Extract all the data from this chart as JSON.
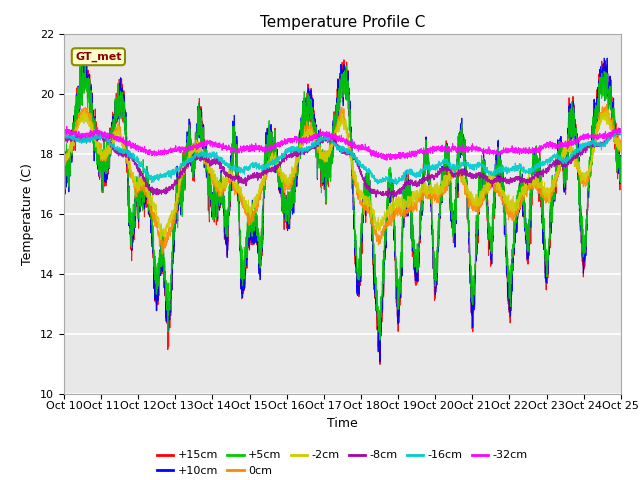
{
  "title": "Temperature Profile C",
  "xlabel": "Time",
  "ylabel": "Temperature (C)",
  "ylim": [
    10,
    22
  ],
  "yticks": [
    10,
    12,
    14,
    16,
    18,
    20,
    22
  ],
  "n_points": 3600,
  "n_days": 15,
  "series": [
    {
      "label": "+15cm",
      "color": "#FF0000",
      "depth_factor": 1.0,
      "base": 18.0
    },
    {
      "label": "+10cm",
      "color": "#0000FF",
      "depth_factor": 0.98,
      "base": 18.0
    },
    {
      "label": "+5cm",
      "color": "#00CC00",
      "depth_factor": 0.9,
      "base": 18.0
    },
    {
      "label": "0cm",
      "color": "#FF8800",
      "depth_factor": 0.7,
      "base": 18.0
    },
    {
      "label": "-2cm",
      "color": "#CCCC00",
      "depth_factor": 0.6,
      "base": 18.0
    },
    {
      "label": "-8cm",
      "color": "#AA00AA",
      "depth_factor": 0.45,
      "base": 18.1
    },
    {
      "label": "-16cm",
      "color": "#00CCCC",
      "depth_factor": 0.35,
      "base": 18.2
    },
    {
      "label": "-32cm",
      "color": "#FF00FF",
      "depth_factor": 0.2,
      "base": 18.5
    }
  ],
  "xtick_labels": [
    "Oct 10",
    "Oct 11",
    "Oct 12",
    "Oct 13",
    "Oct 14",
    "Oct 15",
    "Oct 16",
    "Oct 17",
    "Oct 18",
    "Oct 19",
    "Oct 20",
    "Oct 21",
    "Oct 22",
    "Oct 23",
    "Oct 24",
    "Oct 25"
  ],
  "annotation_text": "GT_met",
  "background_color": "#E8E8E8",
  "grid_color": "#FFFFFF",
  "title_fontsize": 11,
  "axis_label_fontsize": 9,
  "tick_fontsize": 8
}
